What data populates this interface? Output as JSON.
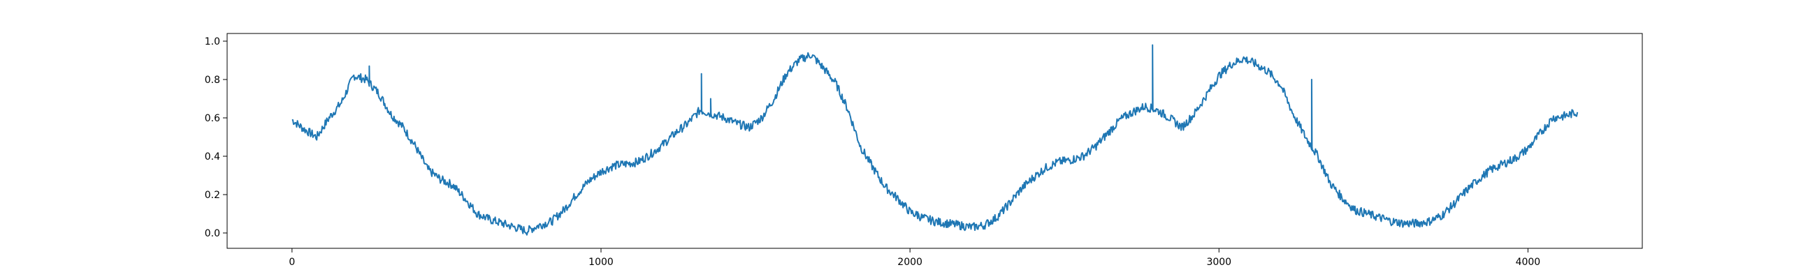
{
  "chart_data": {
    "type": "line",
    "title": "",
    "xlabel": "",
    "ylabel": "",
    "xlim": [
      -210,
      4370
    ],
    "ylim": [
      -0.08,
      1.04
    ],
    "grid": false,
    "legend": "none",
    "color": "#1f77b4",
    "x_ticks": [
      0,
      1000,
      2000,
      3000,
      4000
    ],
    "x_tick_labels": [
      "0",
      "1000",
      "2000",
      "3000",
      "4000"
    ],
    "y_ticks": [
      0.0,
      0.2,
      0.4,
      0.6,
      0.8,
      1.0
    ],
    "y_tick_labels": [
      "0.0",
      "0.2",
      "0.4",
      "0.6",
      "0.8",
      "1.0"
    ],
    "series": [
      {
        "name": "",
        "x": [
          0,
          40,
          80,
          120,
          160,
          200,
          240,
          280,
          320,
          360,
          400,
          440,
          480,
          520,
          560,
          600,
          640,
          680,
          720,
          760,
          800,
          840,
          880,
          920,
          960,
          1000,
          1040,
          1080,
          1120,
          1160,
          1200,
          1240,
          1280,
          1320,
          1360,
          1400,
          1440,
          1480,
          1520,
          1560,
          1600,
          1640,
          1680,
          1720,
          1760,
          1800,
          1840,
          1880,
          1920,
          1960,
          2000,
          2040,
          2080,
          2120,
          2160,
          2200,
          2240,
          2280,
          2320,
          2360,
          2400,
          2440,
          2480,
          2520,
          2560,
          2600,
          2640,
          2680,
          2720,
          2760,
          2800,
          2840,
          2880,
          2920,
          2960,
          3000,
          3040,
          3080,
          3120,
          3160,
          3200,
          3240,
          3280,
          3320,
          3360,
          3400,
          3440,
          3480,
          3520,
          3560,
          3600,
          3640,
          3680,
          3720,
          3760,
          3800,
          3840,
          3880,
          3920,
          3960,
          4000,
          4040,
          4080,
          4120,
          4160
        ],
        "y": [
          0.59,
          0.54,
          0.5,
          0.6,
          0.68,
          0.82,
          0.8,
          0.73,
          0.62,
          0.55,
          0.45,
          0.33,
          0.28,
          0.25,
          0.18,
          0.1,
          0.07,
          0.05,
          0.03,
          0.01,
          0.04,
          0.06,
          0.12,
          0.2,
          0.27,
          0.32,
          0.35,
          0.36,
          0.37,
          0.41,
          0.46,
          0.52,
          0.57,
          0.64,
          0.62,
          0.6,
          0.57,
          0.55,
          0.6,
          0.7,
          0.83,
          0.9,
          0.93,
          0.86,
          0.78,
          0.64,
          0.45,
          0.34,
          0.24,
          0.18,
          0.11,
          0.08,
          0.06,
          0.05,
          0.04,
          0.03,
          0.04,
          0.08,
          0.15,
          0.23,
          0.29,
          0.34,
          0.37,
          0.38,
          0.4,
          0.45,
          0.52,
          0.59,
          0.63,
          0.66,
          0.64,
          0.6,
          0.55,
          0.62,
          0.72,
          0.82,
          0.88,
          0.91,
          0.88,
          0.84,
          0.77,
          0.62,
          0.5,
          0.4,
          0.26,
          0.18,
          0.12,
          0.1,
          0.08,
          0.06,
          0.05,
          0.05,
          0.06,
          0.09,
          0.15,
          0.22,
          0.28,
          0.33,
          0.36,
          0.39,
          0.44,
          0.52,
          0.6,
          0.61,
          0.63
        ]
      }
    ],
    "spikes": [
      {
        "x": 250,
        "y": 0.87
      },
      {
        "x": 1325,
        "y": 0.83
      },
      {
        "x": 1355,
        "y": 0.7
      },
      {
        "x": 2025,
        "y": 0.11
      },
      {
        "x": 2785,
        "y": 0.98
      },
      {
        "x": 3300,
        "y": 0.8
      }
    ]
  }
}
